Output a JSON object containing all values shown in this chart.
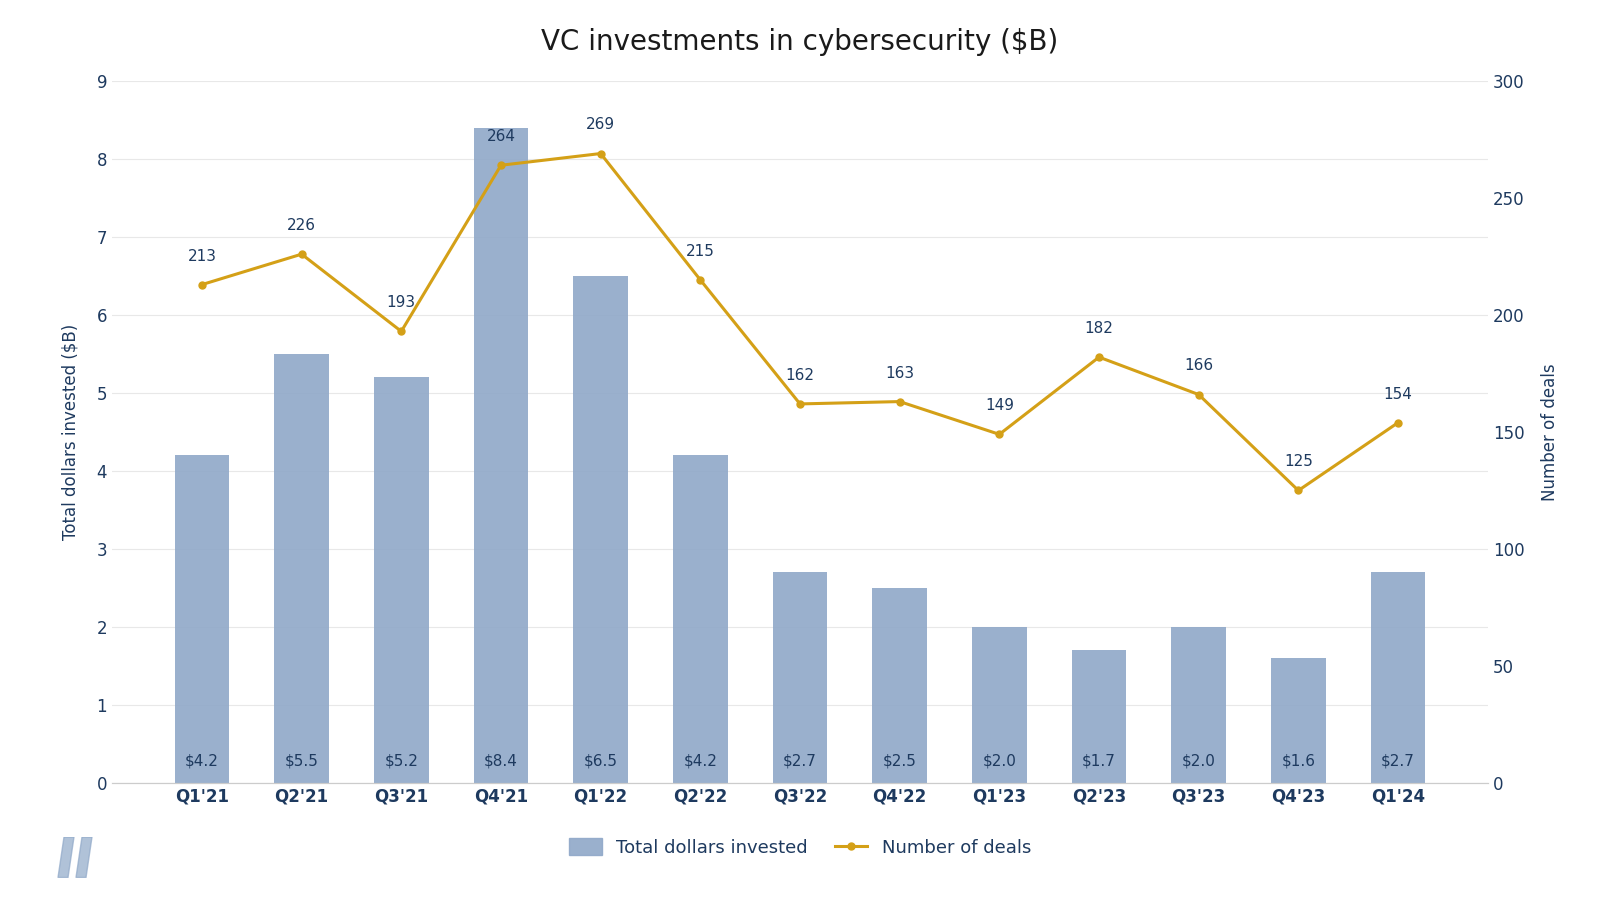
{
  "title": "VC investments in cybersecurity ($B)",
  "categories": [
    "Q1'21",
    "Q2'21",
    "Q3'21",
    "Q4'21",
    "Q1'22",
    "Q2'22",
    "Q3'22",
    "Q4'22",
    "Q1'23",
    "Q2'23",
    "Q3'23",
    "Q4'23",
    "Q1'24"
  ],
  "bar_values": [
    4.2,
    5.5,
    5.2,
    8.4,
    6.5,
    4.2,
    2.7,
    2.5,
    2.0,
    1.7,
    2.0,
    1.6,
    2.7
  ],
  "bar_labels": [
    "$4.2",
    "$5.5",
    "$5.2",
    "$8.4",
    "$6.5",
    "$4.2",
    "$2.7",
    "$2.5",
    "$2.0",
    "$1.7",
    "$2.0",
    "$1.6",
    "$2.7"
  ],
  "deal_counts": [
    213,
    226,
    193,
    264,
    269,
    215,
    162,
    163,
    149,
    182,
    166,
    125,
    154
  ],
  "bar_color": "#8fa8c8",
  "line_color": "#d4a017",
  "ylabel_left": "Total dollars invested ($B)",
  "ylabel_right": "Number of deals",
  "ylim_left": [
    0,
    9
  ],
  "ylim_right": [
    0,
    300
  ],
  "yticks_left": [
    0,
    1,
    2,
    3,
    4,
    5,
    6,
    7,
    8,
    9
  ],
  "yticks_right": [
    0,
    50,
    100,
    150,
    200,
    250,
    300
  ],
  "background_color": "#ffffff",
  "text_color": "#1e3a5f",
  "legend_bar_label": "Total dollars invested",
  "legend_line_label": "Number of deals",
  "title_fontsize": 20,
  "label_fontsize": 12,
  "tick_fontsize": 12,
  "deal_label_fontsize": 11,
  "bar_label_fontsize": 11,
  "legend_fontsize": 13
}
